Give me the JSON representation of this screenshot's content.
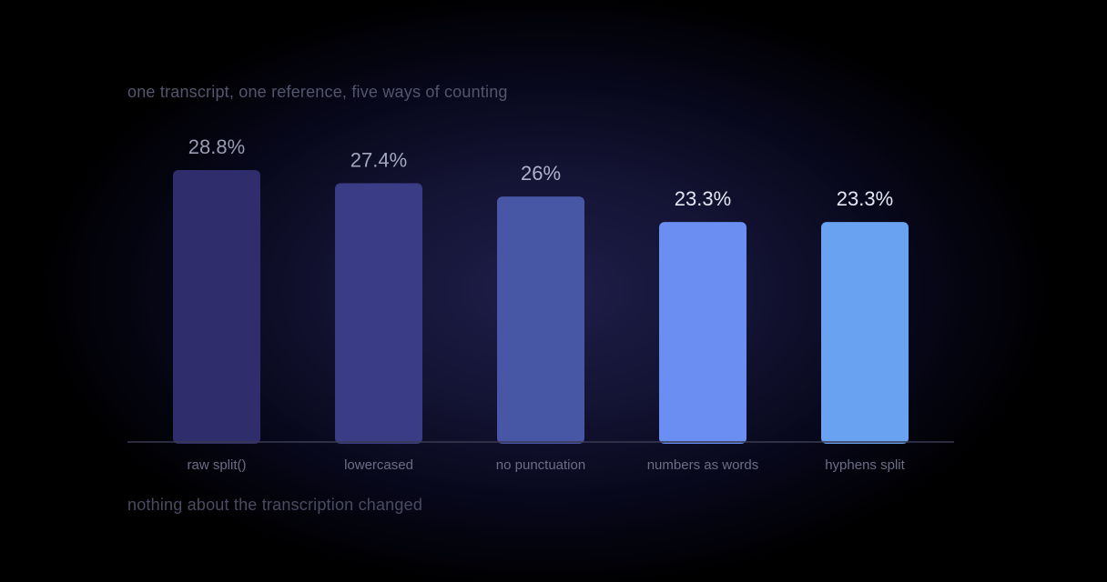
{
  "subtitle": "one transcript, one reference, five ways of counting",
  "caption": "nothing about the transcription changed",
  "chart_data": {
    "type": "bar",
    "title": "",
    "xlabel": "",
    "ylabel": "",
    "unit": "%",
    "categories": [
      "raw split()",
      "lowercased",
      "no punctuation",
      "numbers as words",
      "hyphens split"
    ],
    "values": [
      28.8,
      27.4,
      26,
      23.3,
      23.3
    ],
    "value_labels": [
      "28.8%",
      "27.4%",
      "26%",
      "23.3%",
      "23.3%"
    ],
    "ylim": [
      0,
      28.8
    ],
    "grid": false,
    "legend": "none",
    "bar_colors": [
      "#2f2d6c",
      "#3a3c86",
      "#4856a6",
      "#6a8ef2",
      "#68a2f0"
    ],
    "label_colors": [
      "#9a9ab2",
      "#a4a6bf",
      "#aeb2ca",
      "#e4e7f3",
      "#e4e7f3"
    ],
    "axis_color": "#3a3a52"
  }
}
